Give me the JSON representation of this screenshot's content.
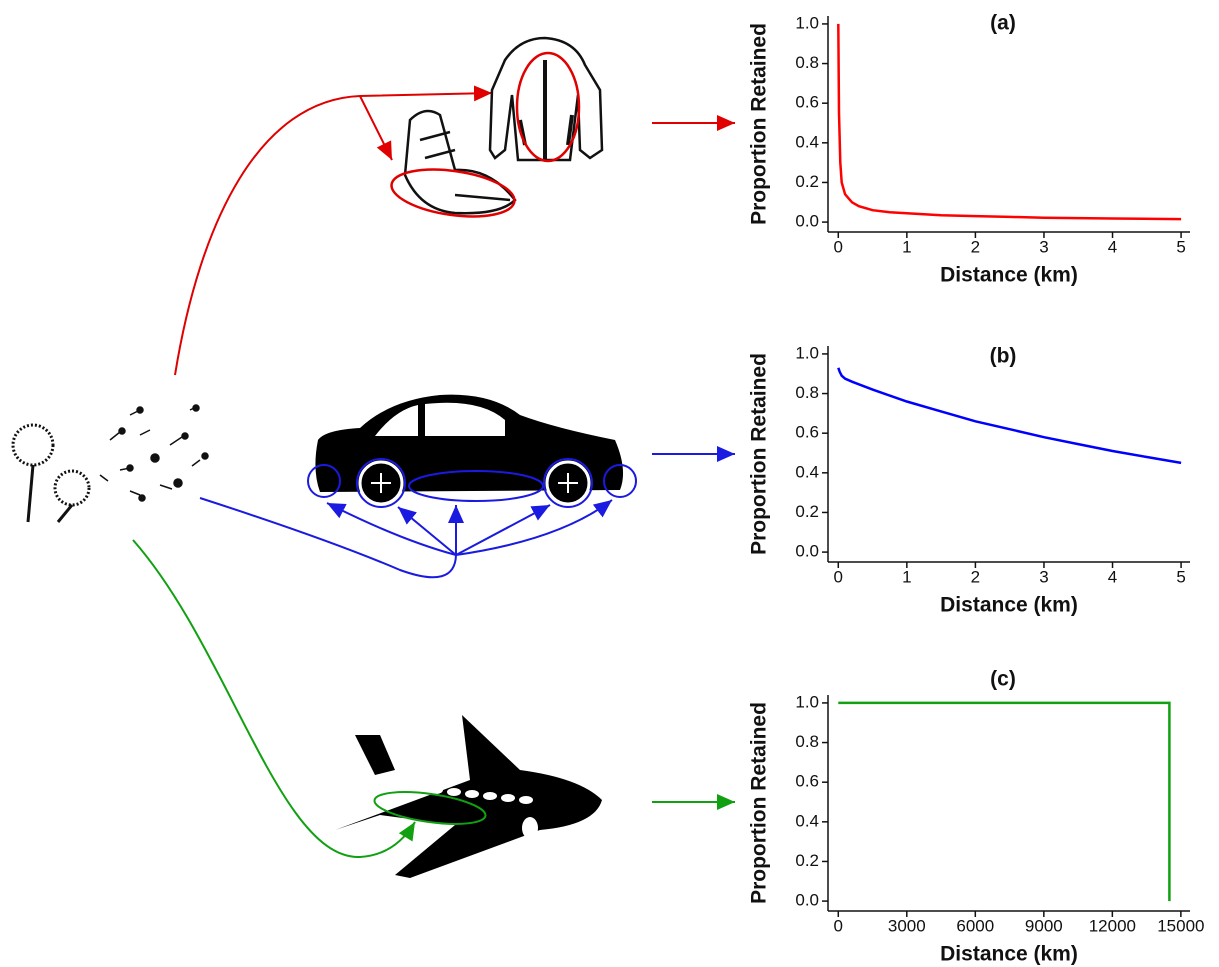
{
  "chart_data": [
    {
      "type": "line",
      "title": "(a)",
      "x_label": "Distance (km)",
      "y_label": "Proportion Retained",
      "color": "#ff0000",
      "x": [
        0,
        0.01,
        0.03,
        0.05,
        0.1,
        0.2,
        0.3,
        0.5,
        0.75,
        1,
        1.5,
        2,
        2.5,
        3,
        4,
        5
      ],
      "values": [
        1.0,
        0.55,
        0.3,
        0.2,
        0.14,
        0.1,
        0.08,
        0.06,
        0.05,
        0.045,
        0.035,
        0.03,
        0.026,
        0.022,
        0.018,
        0.015
      ],
      "xlim": [
        -0.15,
        5.13
      ],
      "ylim": [
        -0.05,
        1.04
      ],
      "xticks": [
        0,
        1,
        2,
        3,
        4,
        5
      ],
      "yticks": [
        {
          "value": 0,
          "label": "0.0"
        },
        0.2,
        0.4,
        0.6,
        0.8,
        {
          "value": 1,
          "label": "1.0"
        }
      ]
    },
    {
      "type": "line",
      "title": "(b)",
      "x_label": "Distance (km)",
      "y_label": "Proportion Retained",
      "color": "#0000ff",
      "x": [
        0,
        0.02,
        0.05,
        0.1,
        0.2,
        0.5,
        1,
        1.5,
        2,
        2.5,
        3,
        3.5,
        4,
        4.5,
        5
      ],
      "values": [
        0.93,
        0.91,
        0.89,
        0.875,
        0.86,
        0.82,
        0.76,
        0.71,
        0.66,
        0.62,
        0.58,
        0.545,
        0.51,
        0.48,
        0.45
      ],
      "xlim": [
        -0.15,
        5.13
      ],
      "ylim": [
        -0.05,
        1.04
      ],
      "xticks": [
        0,
        1,
        2,
        3,
        4,
        5
      ],
      "yticks": [
        {
          "value": 0,
          "label": "0.0"
        },
        0.2,
        0.4,
        0.6,
        0.8,
        {
          "value": 1,
          "label": "1.0"
        }
      ]
    },
    {
      "type": "line",
      "title": "(c)",
      "x_label": "Distance (km)",
      "y_label": "Proportion Retained",
      "color": "#11a011",
      "x": [
        0,
        14500,
        14500
      ],
      "values": [
        1.0,
        1.0,
        0.0
      ],
      "xlim": [
        -450,
        15400
      ],
      "ylim": [
        -0.05,
        1.04
      ],
      "xticks": [
        0,
        3000,
        6000,
        9000,
        12000,
        15000
      ],
      "yticks": [
        {
          "value": 0,
          "label": "0.0"
        },
        0.2,
        0.4,
        0.6,
        0.8,
        {
          "value": 1,
          "label": "1.0"
        }
      ]
    }
  ]
}
